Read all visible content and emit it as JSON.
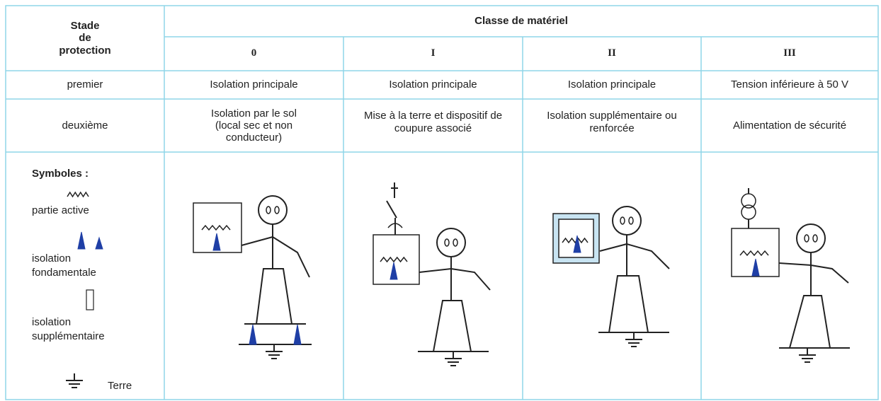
{
  "header": {
    "stage": [
      "Stade",
      "de",
      "protection"
    ],
    "group": "Classe de matériel",
    "classes": [
      "0",
      "I",
      "II",
      "III"
    ]
  },
  "rows": [
    {
      "label": "premier",
      "cells": [
        "Isolation principale",
        "Isolation principale",
        "Isolation principale",
        "Tension inférieure à 50 V"
      ]
    },
    {
      "label": "deuxième",
      "cells": [
        "Isolation par le sol (local sec et non conducteur)",
        "Mise à la terre et dispositif de coupure associé",
        "Isolation supplémentaire ou renforcée",
        "Alimentation de sécurité"
      ]
    }
  ],
  "legend": {
    "title": "Symboles :",
    "items": [
      "partie active",
      "isolation fondamentale",
      "isolation supplémentaire",
      "Terre"
    ]
  }
}
